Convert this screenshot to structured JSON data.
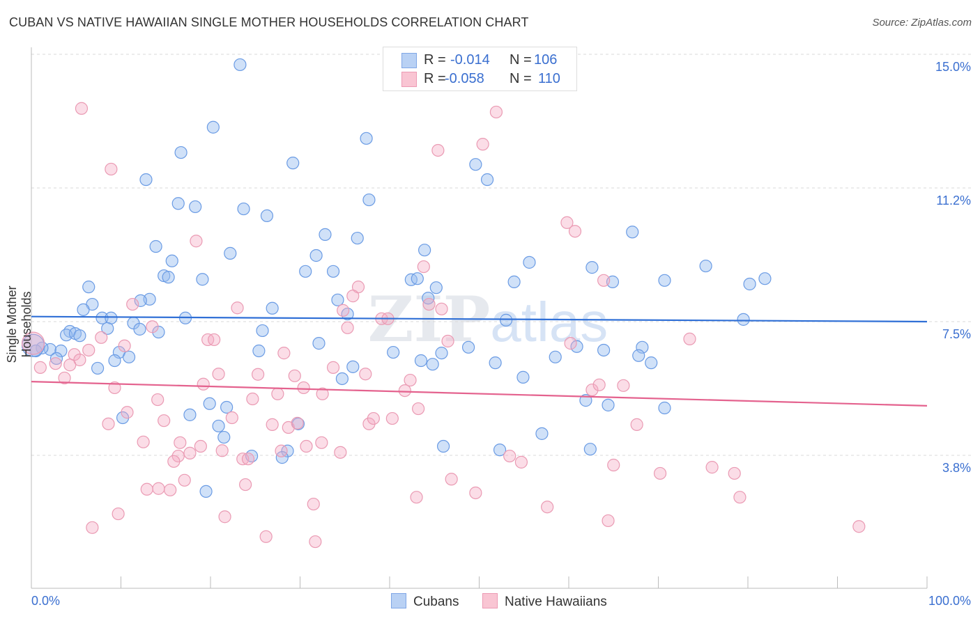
{
  "title": "CUBAN VS NATIVE HAWAIIAN SINGLE MOTHER HOUSEHOLDS CORRELATION CHART",
  "source": "Source: ZipAtlas.com",
  "watermark": "ZIPatlas",
  "legend_top": [
    {
      "r_label": "R =",
      "r_value": "-0.014",
      "n_label": "N =",
      "n_value": "106"
    },
    {
      "r_label": "R =",
      "r_value": "-0.058",
      "n_label": "N =",
      "n_value": "110"
    }
  ],
  "chart_data": {
    "type": "scatter",
    "title": "CUBAN VS NATIVE HAWAIIAN SINGLE MOTHER HOUSEHOLDS CORRELATION CHART",
    "xlabel": "",
    "ylabel": "Single Mother Households",
    "xlim": [
      0,
      100
    ],
    "ylim": [
      0,
      15.3
    ],
    "x_tick_labels": [
      "0.0%",
      "100.0%"
    ],
    "y_ticks": [
      3.75,
      7.5,
      11.25,
      15.0
    ],
    "y_tick_labels": [
      "3.8%",
      "7.5%",
      "11.2%",
      "15.0%"
    ],
    "grid": true,
    "legend_position": "bottom",
    "colors": {
      "Cubans": "#5b8fe0",
      "Native Hawaiians": "#e98aa8",
      "cubans_line": "#2f6fd6",
      "hawaiians_line": "#e4628e"
    },
    "series": [
      {
        "name": "Cubans",
        "trend": [
          [
            0,
            7.64
          ],
          [
            100,
            7.5
          ]
        ],
        "points": [
          [
            23.3,
            14.61
          ],
          [
            20.3,
            12.88
          ],
          [
            37.4,
            12.57
          ],
          [
            16.7,
            12.18
          ],
          [
            29.2,
            11.89
          ],
          [
            49.6,
            11.85
          ],
          [
            12.8,
            11.43
          ],
          [
            50.9,
            11.43
          ],
          [
            16.4,
            10.77
          ],
          [
            18.3,
            10.68
          ],
          [
            37.7,
            10.87
          ],
          [
            23.7,
            10.62
          ],
          [
            26.3,
            10.43
          ],
          [
            32.8,
            9.91
          ],
          [
            36.4,
            9.81
          ],
          [
            67.1,
            9.98
          ],
          [
            13.9,
            9.58
          ],
          [
            22.2,
            9.39
          ],
          [
            31.8,
            9.33
          ],
          [
            43.9,
            9.48
          ],
          [
            15.7,
            9.18
          ],
          [
            55.6,
            9.14
          ],
          [
            30.6,
            8.89
          ],
          [
            33.7,
            8.89
          ],
          [
            62.6,
            9.0
          ],
          [
            75.3,
            9.04
          ],
          [
            81.9,
            8.69
          ],
          [
            80.2,
            8.54
          ],
          [
            14.8,
            8.77
          ],
          [
            15.3,
            8.73
          ],
          [
            19.1,
            8.67
          ],
          [
            42.4,
            8.66
          ],
          [
            43.1,
            8.69
          ],
          [
            53.9,
            8.6
          ],
          [
            64.9,
            8.6
          ],
          [
            70.7,
            8.64
          ],
          [
            6.4,
            8.46
          ],
          [
            45.2,
            8.44
          ],
          [
            13.2,
            8.12
          ],
          [
            12.2,
            8.08
          ],
          [
            34.2,
            8.1
          ],
          [
            44.3,
            8.15
          ],
          [
            6.8,
            7.98
          ],
          [
            5.8,
            7.83
          ],
          [
            26.9,
            7.87
          ],
          [
            35.3,
            7.71
          ],
          [
            7.9,
            7.6
          ],
          [
            8.9,
            7.6
          ],
          [
            17.2,
            7.6
          ],
          [
            53.0,
            7.54
          ],
          [
            79.5,
            7.56
          ],
          [
            11.4,
            7.46
          ],
          [
            8.5,
            7.31
          ],
          [
            12.1,
            7.29
          ],
          [
            4.3,
            7.23
          ],
          [
            14.2,
            7.21
          ],
          [
            25.8,
            7.25
          ],
          [
            3.9,
            7.13
          ],
          [
            4.9,
            7.17
          ],
          [
            5.4,
            7.11
          ],
          [
            32.1,
            6.9
          ],
          [
            48.8,
            6.79
          ],
          [
            68.2,
            6.79
          ],
          [
            40.4,
            6.65
          ],
          [
            45.8,
            6.63
          ],
          [
            63.9,
            6.71
          ],
          [
            60.9,
            6.81
          ],
          [
            2.1,
            6.73
          ],
          [
            1.2,
            6.77
          ],
          [
            0.5,
            6.69
          ],
          [
            3.3,
            6.69
          ],
          [
            9.8,
            6.65
          ],
          [
            10.9,
            6.52
          ],
          [
            25.4,
            6.69
          ],
          [
            9.3,
            6.42
          ],
          [
            58.5,
            6.52
          ],
          [
            67.8,
            6.56
          ],
          [
            69.2,
            6.36
          ],
          [
            43.5,
            6.42
          ],
          [
            44.8,
            6.32
          ],
          [
            51.8,
            6.36
          ],
          [
            2.8,
            6.48
          ],
          [
            7.4,
            6.21
          ],
          [
            35.9,
            6.25
          ],
          [
            34.7,
            5.92
          ],
          [
            54.9,
            5.96
          ],
          [
            19.9,
            5.23
          ],
          [
            21.8,
            5.13
          ],
          [
            61.9,
            5.32
          ],
          [
            64.4,
            5.19
          ],
          [
            70.7,
            5.11
          ],
          [
            17.7,
            4.92
          ],
          [
            10.2,
            4.84
          ],
          [
            20.9,
            4.61
          ],
          [
            29.8,
            4.67
          ],
          [
            21.5,
            4.3
          ],
          [
            57.0,
            4.4
          ],
          [
            46.0,
            4.05
          ],
          [
            52.3,
            3.95
          ],
          [
            62.4,
            3.97
          ],
          [
            28.6,
            3.92
          ],
          [
            24.6,
            3.78
          ],
          [
            28.0,
            3.74
          ],
          [
            19.5,
            2.8
          ],
          [
            0.2,
            6.84
          ]
        ]
      },
      {
        "name": "Native Hawaiians",
        "trend": [
          [
            0,
            5.84
          ],
          [
            100,
            5.17
          ]
        ],
        "points": [
          [
            5.6,
            13.4
          ],
          [
            51.9,
            13.3
          ],
          [
            8.9,
            11.72
          ],
          [
            45.4,
            12.24
          ],
          [
            50.4,
            12.41
          ],
          [
            18.4,
            9.73
          ],
          [
            59.8,
            10.24
          ],
          [
            60.7,
            10.0
          ],
          [
            43.8,
            9.02
          ],
          [
            36.5,
            8.46
          ],
          [
            63.9,
            8.64
          ],
          [
            35.9,
            8.21
          ],
          [
            11.3,
            7.98
          ],
          [
            23.0,
            7.88
          ],
          [
            44.4,
            7.98
          ],
          [
            45.8,
            7.85
          ],
          [
            34.8,
            7.81
          ],
          [
            39.1,
            7.58
          ],
          [
            39.8,
            7.58
          ],
          [
            13.5,
            7.36
          ],
          [
            7.8,
            7.06
          ],
          [
            35.3,
            7.33
          ],
          [
            19.7,
            7.0
          ],
          [
            20.4,
            7.0
          ],
          [
            46.5,
            6.96
          ],
          [
            73.5,
            7.02
          ],
          [
            60.2,
            6.9
          ],
          [
            10.4,
            6.83
          ],
          [
            6.4,
            6.71
          ],
          [
            4.8,
            6.59
          ],
          [
            5.4,
            6.44
          ],
          [
            4.3,
            6.3
          ],
          [
            2.7,
            6.34
          ],
          [
            1.0,
            6.23
          ],
          [
            3.7,
            5.94
          ],
          [
            28.2,
            6.63
          ],
          [
            33.7,
            6.23
          ],
          [
            20.9,
            6.05
          ],
          [
            25.3,
            6.04
          ],
          [
            29.4,
            6.0
          ],
          [
            37.3,
            6.05
          ],
          [
            42.3,
            5.88
          ],
          [
            9.3,
            5.67
          ],
          [
            19.2,
            5.77
          ],
          [
            30.4,
            5.67
          ],
          [
            32.5,
            5.5
          ],
          [
            41.7,
            5.59
          ],
          [
            62.6,
            5.61
          ],
          [
            63.4,
            5.75
          ],
          [
            66.1,
            5.73
          ],
          [
            14.1,
            5.34
          ],
          [
            24.7,
            5.36
          ],
          [
            27.5,
            5.5
          ],
          [
            43.2,
            5.09
          ],
          [
            10.7,
            4.99
          ],
          [
            8.6,
            4.67
          ],
          [
            14.8,
            4.76
          ],
          [
            22.4,
            4.84
          ],
          [
            26.9,
            4.65
          ],
          [
            28.7,
            4.57
          ],
          [
            29.7,
            4.69
          ],
          [
            37.7,
            4.67
          ],
          [
            38.2,
            4.82
          ],
          [
            40.3,
            4.82
          ],
          [
            67.6,
            4.65
          ],
          [
            12.5,
            4.17
          ],
          [
            16.6,
            4.15
          ],
          [
            18.9,
            4.05
          ],
          [
            32.4,
            4.15
          ],
          [
            30.7,
            4.05
          ],
          [
            34.5,
            3.88
          ],
          [
            16.4,
            3.78
          ],
          [
            21.3,
            3.93
          ],
          [
            23.6,
            3.7
          ],
          [
            24.2,
            3.7
          ],
          [
            15.9,
            3.63
          ],
          [
            17.7,
            3.86
          ],
          [
            27.9,
            3.92
          ],
          [
            53.4,
            3.78
          ],
          [
            54.7,
            3.61
          ],
          [
            65.0,
            3.53
          ],
          [
            76.0,
            3.47
          ],
          [
            78.5,
            3.3
          ],
          [
            70.2,
            3.3
          ],
          [
            46.9,
            3.14
          ],
          [
            17.1,
            3.11
          ],
          [
            23.9,
            2.99
          ],
          [
            12.9,
            2.86
          ],
          [
            14.2,
            2.88
          ],
          [
            15.5,
            2.84
          ],
          [
            49.6,
            2.76
          ],
          [
            43.0,
            2.64
          ],
          [
            79.1,
            2.64
          ],
          [
            31.5,
            2.45
          ],
          [
            57.6,
            2.37
          ],
          [
            9.7,
            2.18
          ],
          [
            21.6,
            2.1
          ],
          [
            64.4,
            1.99
          ],
          [
            92.4,
            1.83
          ],
          [
            6.8,
            1.8
          ],
          [
            26.2,
            1.55
          ],
          [
            31.7,
            1.41
          ],
          [
            0.2,
            6.9
          ]
        ]
      }
    ]
  }
}
